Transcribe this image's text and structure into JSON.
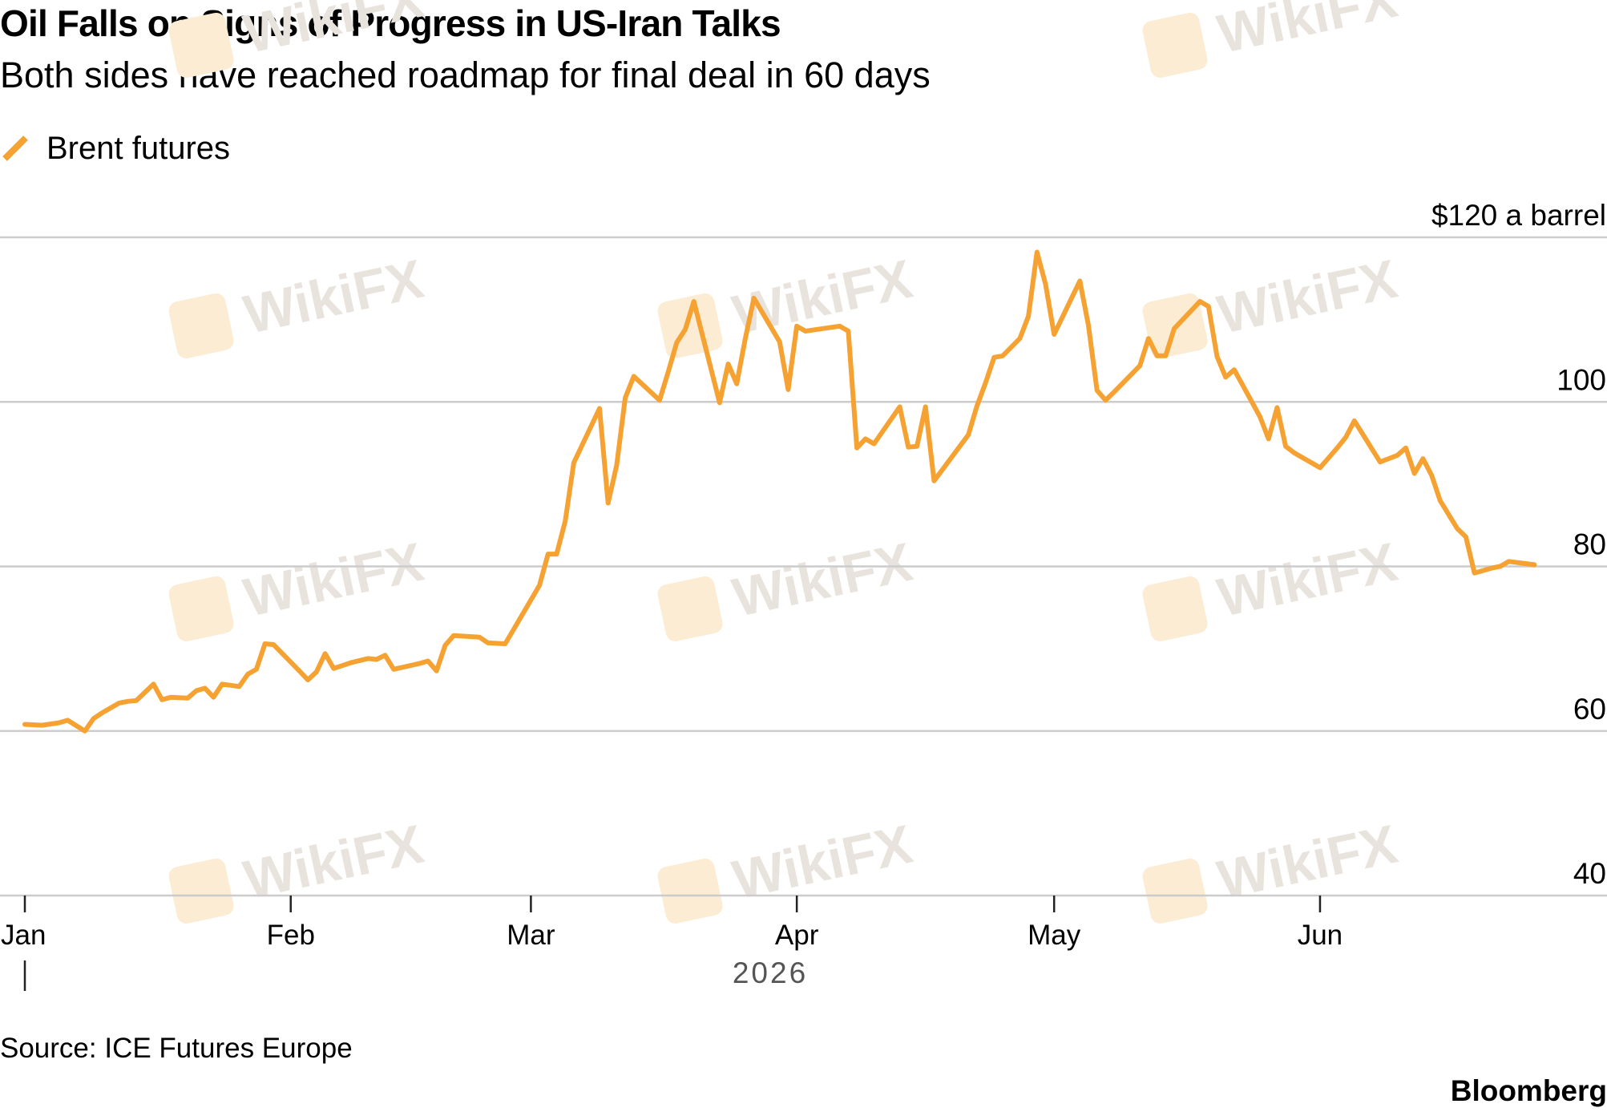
{
  "title": "Oil Falls on Signs of Progress in US-Iran Talks",
  "subtitle": "Both sides have reached roadmap for final deal in 60 days",
  "source": "Source: ICE Futures Europe",
  "brand": "Bloomberg",
  "watermark": "WikiFX",
  "colors": {
    "line": "#F5A232",
    "grid": "#cccccc",
    "text": "#000000",
    "year": "#555555",
    "watermark": "#e9e3dd",
    "watermark_logo": "#fbecd3"
  },
  "chart_data": {
    "type": "line",
    "title": "Oil Falls on Signs of Progress in US-Iran Talks",
    "subtitle": "Both sides have reached roadmap for final deal in 60 days",
    "unit_label": "$120 a barrel",
    "y_ticks": [
      "40",
      "60",
      "80",
      "100",
      "$120 a barrel"
    ],
    "y_tick_values": [
      40,
      60,
      80,
      100,
      120
    ],
    "ylim": [
      40,
      120
    ],
    "x_ticks": [
      "Jan",
      "Feb",
      "Mar",
      "Apr",
      "May",
      "Jun"
    ],
    "x_tick_dates": [
      "2026-01-01",
      "2026-02-01",
      "2026-03-01",
      "2026-04-01",
      "2026-05-01",
      "2026-06-01"
    ],
    "year_label": "2026",
    "xlim": [
      "2026-01-01",
      "2026-07-01"
    ],
    "grid": true,
    "legend_position": "top-left",
    "series": [
      {
        "name": "Brent futures",
        "color": "#F5A232",
        "points": [
          [
            "2026-01-01",
            60.8
          ],
          [
            "2026-01-03",
            60.7
          ],
          [
            "2026-01-05",
            61.0
          ],
          [
            "2026-01-06",
            61.3
          ],
          [
            "2026-01-08",
            60.0
          ],
          [
            "2026-01-09",
            61.5
          ],
          [
            "2026-01-10",
            62.2
          ],
          [
            "2026-01-12",
            63.4
          ],
          [
            "2026-01-13",
            63.6
          ],
          [
            "2026-01-14",
            63.7
          ],
          [
            "2026-01-16",
            65.7
          ],
          [
            "2026-01-17",
            63.8
          ],
          [
            "2026-01-18",
            64.1
          ],
          [
            "2026-01-20",
            64.0
          ],
          [
            "2026-01-21",
            64.9
          ],
          [
            "2026-01-22",
            65.2
          ],
          [
            "2026-01-23",
            64.1
          ],
          [
            "2026-01-24",
            65.7
          ],
          [
            "2026-01-26",
            65.4
          ],
          [
            "2026-01-27",
            66.9
          ],
          [
            "2026-01-28",
            67.5
          ],
          [
            "2026-01-29",
            70.6
          ],
          [
            "2026-01-30",
            70.5
          ],
          [
            "2026-02-02",
            67.3
          ],
          [
            "2026-02-03",
            66.2
          ],
          [
            "2026-02-04",
            67.2
          ],
          [
            "2026-02-05",
            69.4
          ],
          [
            "2026-02-06",
            67.6
          ],
          [
            "2026-02-08",
            68.3
          ],
          [
            "2026-02-10",
            68.8
          ],
          [
            "2026-02-11",
            68.7
          ],
          [
            "2026-02-12",
            69.2
          ],
          [
            "2026-02-13",
            67.5
          ],
          [
            "2026-02-16",
            68.2
          ],
          [
            "2026-02-17",
            68.5
          ],
          [
            "2026-02-18",
            67.3
          ],
          [
            "2026-02-19",
            70.4
          ],
          [
            "2026-02-20",
            71.6
          ],
          [
            "2026-02-23",
            71.4
          ],
          [
            "2026-02-24",
            70.7
          ],
          [
            "2026-02-26",
            70.6
          ],
          [
            "2026-03-02",
            77.7
          ],
          [
            "2026-03-03",
            81.5
          ],
          [
            "2026-03-04",
            81.5
          ],
          [
            "2026-03-05",
            85.5
          ],
          [
            "2026-03-06",
            92.6
          ],
          [
            "2026-03-09",
            99.2
          ],
          [
            "2026-03-10",
            87.7
          ],
          [
            "2026-03-11",
            92.3
          ],
          [
            "2026-03-12",
            100.5
          ],
          [
            "2026-03-13",
            103.1
          ],
          [
            "2026-03-16",
            100.2
          ],
          [
            "2026-03-17",
            103.6
          ],
          [
            "2026-03-18",
            107.2
          ],
          [
            "2026-03-19",
            108.8
          ],
          [
            "2026-03-20",
            112.2
          ],
          [
            "2026-03-23",
            99.9
          ],
          [
            "2026-03-24",
            104.6
          ],
          [
            "2026-03-25",
            102.2
          ],
          [
            "2026-03-26",
            107.7
          ],
          [
            "2026-03-27",
            112.6
          ],
          [
            "2026-03-30",
            107.3
          ],
          [
            "2026-03-31",
            101.5
          ],
          [
            "2026-04-01",
            109.2
          ],
          [
            "2026-04-02",
            108.6
          ],
          [
            "2026-04-06",
            109.2
          ],
          [
            "2026-04-07",
            108.6
          ],
          [
            "2026-04-08",
            94.4
          ],
          [
            "2026-04-09",
            95.5
          ],
          [
            "2026-04-10",
            94.9
          ],
          [
            "2026-04-13",
            99.4
          ],
          [
            "2026-04-14",
            94.5
          ],
          [
            "2026-04-15",
            94.6
          ],
          [
            "2026-04-16",
            99.4
          ],
          [
            "2026-04-17",
            90.4
          ],
          [
            "2026-04-20",
            94.6
          ],
          [
            "2026-04-21",
            96.0
          ],
          [
            "2026-04-22",
            99.5
          ],
          [
            "2026-04-23",
            102.3
          ],
          [
            "2026-04-24",
            105.4
          ],
          [
            "2026-04-25",
            105.6
          ],
          [
            "2026-04-27",
            107.7
          ],
          [
            "2026-04-28",
            110.4
          ],
          [
            "2026-04-29",
            118.2
          ],
          [
            "2026-04-30",
            114.3
          ],
          [
            "2026-05-01",
            108.2
          ],
          [
            "2026-05-04",
            114.7
          ],
          [
            "2026-05-05",
            109.3
          ],
          [
            "2026-05-06",
            101.4
          ],
          [
            "2026-05-07",
            100.2
          ],
          [
            "2026-05-08",
            101.2
          ],
          [
            "2026-05-11",
            104.4
          ],
          [
            "2026-05-12",
            107.7
          ],
          [
            "2026-05-13",
            105.6
          ],
          [
            "2026-05-14",
            105.6
          ],
          [
            "2026-05-15",
            108.9
          ],
          [
            "2026-05-18",
            112.2
          ],
          [
            "2026-05-19",
            111.6
          ],
          [
            "2026-05-20",
            105.5
          ],
          [
            "2026-05-21",
            103.0
          ],
          [
            "2026-05-22",
            103.9
          ],
          [
            "2026-05-25",
            98.2
          ],
          [
            "2026-05-26",
            95.5
          ],
          [
            "2026-05-27",
            99.3
          ],
          [
            "2026-05-28",
            94.6
          ],
          [
            "2026-05-29",
            93.8
          ],
          [
            "2026-06-01",
            92.0
          ],
          [
            "2026-06-03",
            94.4
          ],
          [
            "2026-06-04",
            95.7
          ],
          [
            "2026-06-05",
            97.7
          ],
          [
            "2026-06-08",
            92.7
          ],
          [
            "2026-06-10",
            93.5
          ],
          [
            "2026-06-11",
            94.4
          ],
          [
            "2026-06-12",
            91.3
          ],
          [
            "2026-06-13",
            93.1
          ],
          [
            "2026-06-14",
            91.1
          ],
          [
            "2026-06-15",
            88.0
          ],
          [
            "2026-06-17",
            84.6
          ],
          [
            "2026-06-18",
            83.6
          ],
          [
            "2026-06-19",
            79.2
          ],
          [
            "2026-06-21",
            79.8
          ],
          [
            "2026-06-22",
            80.0
          ],
          [
            "2026-06-23",
            80.6
          ],
          [
            "2026-06-26",
            80.2
          ]
        ]
      }
    ]
  }
}
